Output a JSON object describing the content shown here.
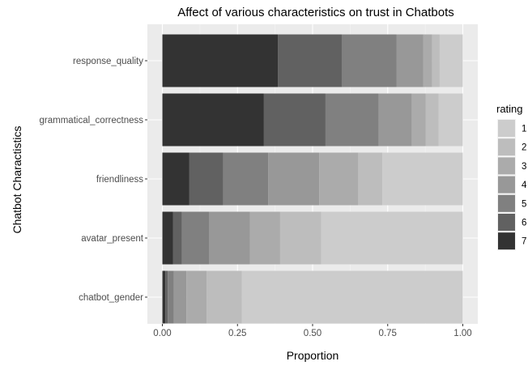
{
  "chart_data": {
    "type": "bar",
    "orientation": "horizontal",
    "stacked": true,
    "title": "Affect of various characteristics on trust in Chatbots",
    "xlabel": "Proportion",
    "ylabel": "Chatbot Charactistics",
    "xlim": [
      0,
      1
    ],
    "xticks": [
      "0.00",
      "0.25",
      "0.50",
      "0.75",
      "1.00"
    ],
    "grid": true,
    "legend_position": "right",
    "legend_title": "rating",
    "categories": [
      "response_quality",
      "grammatical_correctness",
      "friendliness",
      "avatar_present",
      "chatbot_gender"
    ],
    "series": [
      {
        "name": "7",
        "color": "#333333",
        "values": [
          0.385,
          0.338,
          0.09,
          0.035,
          0.01
        ]
      },
      {
        "name": "6",
        "color": "#616161",
        "values": [
          0.212,
          0.205,
          0.112,
          0.03,
          0.008
        ]
      },
      {
        "name": "5",
        "color": "#808080",
        "values": [
          0.183,
          0.177,
          0.15,
          0.09,
          0.02
        ]
      },
      {
        "name": "4",
        "color": "#989898",
        "values": [
          0.088,
          0.11,
          0.17,
          0.137,
          0.042
        ]
      },
      {
        "name": "3",
        "color": "#ababab",
        "values": [
          0.03,
          0.047,
          0.13,
          0.1,
          0.067
        ]
      },
      {
        "name": "2",
        "color": "#bdbdbd",
        "values": [
          0.025,
          0.043,
          0.08,
          0.137,
          0.118
        ]
      },
      {
        "name": "1",
        "color": "#cccccc",
        "values": [
          0.077,
          0.08,
          0.268,
          0.471,
          0.735
        ]
      }
    ],
    "legend_order": [
      "1",
      "2",
      "3",
      "4",
      "5",
      "6",
      "7"
    ]
  }
}
